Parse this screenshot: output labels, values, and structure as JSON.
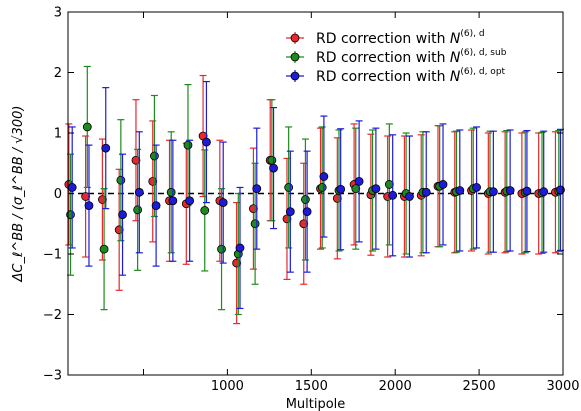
{
  "chart_data": {
    "type": "scatter",
    "title": "",
    "xlabel": "Multipole",
    "ylabel": "ΔC_ℓ^BB / (σ_ℓ^BB / √300)",
    "xlim": [
      50,
      3000
    ],
    "ylim": [
      -3,
      3
    ],
    "x_ticks": [
      1000,
      1500,
      2000,
      2500,
      3000
    ],
    "y_ticks": [
      -3,
      -2,
      -1,
      0,
      1,
      2,
      3
    ],
    "x_tick_labels": [
      "1000",
      "1500",
      "2000",
      "2500",
      "3000"
    ],
    "y_tick_labels": [
      "−3",
      "−2",
      "−1",
      "0",
      "1",
      "2",
      "3"
    ],
    "zero_line": true,
    "grid": false,
    "legend_position": "top-right",
    "series": [
      {
        "name": "RD correction with N^(6), d",
        "legend_main": "RD correction with ",
        "legend_hat": "N",
        "legend_sup": "(6), d",
        "color": "#e8282d",
        "x": [
          55,
          155,
          255,
          355,
          455,
          555,
          655,
          755,
          855,
          955,
          1055,
          1155,
          1255,
          1355,
          1455,
          1555,
          1655,
          1755,
          1855,
          1955,
          2055,
          2155,
          2255,
          2355,
          2455,
          2555,
          2655,
          2755,
          2855,
          2955
        ],
        "y": [
          0.15,
          -0.05,
          -0.1,
          -0.6,
          0.55,
          0.2,
          -0.12,
          -0.17,
          0.95,
          -0.12,
          -1.15,
          -0.25,
          0.55,
          -0.42,
          -0.5,
          0.08,
          -0.08,
          0.15,
          -0.02,
          -0.05,
          -0.05,
          -0.03,
          0.12,
          0.02,
          0.05,
          0.0,
          0.02,
          0.0,
          0.0,
          0.02
        ],
        "err": [
          1.0,
          1.0,
          1.0,
          1.0,
          1.0,
          1.0,
          1.0,
          1.0,
          1.0,
          1.0,
          1.0,
          1.0,
          1.0,
          1.0,
          1.0,
          1.0,
          1.0,
          1.0,
          1.0,
          1.0,
          1.0,
          1.0,
          1.0,
          1.0,
          1.0,
          1.0,
          1.0,
          1.0,
          1.0,
          1.0
        ]
      },
      {
        "name": "RD correction with N^(6), d, sub",
        "legend_main": "RD correction with ",
        "legend_hat": "N",
        "legend_sup": "(6), d, sub",
        "color": "#1c8a1c",
        "x": [
          65,
          165,
          265,
          365,
          465,
          565,
          665,
          765,
          865,
          965,
          1065,
          1165,
          1265,
          1365,
          1465,
          1565,
          1665,
          1765,
          1865,
          1965,
          2065,
          2165,
          2265,
          2365,
          2465,
          2565,
          2665,
          2775,
          2875,
          2975
        ],
        "y": [
          -0.35,
          1.1,
          -0.92,
          0.22,
          -0.27,
          0.62,
          0.02,
          0.8,
          -0.28,
          -0.92,
          -1.0,
          -0.5,
          0.55,
          0.1,
          -0.1,
          0.1,
          0.05,
          0.08,
          0.05,
          0.15,
          0.0,
          0.02,
          0.12,
          0.03,
          0.08,
          0.03,
          0.04,
          0.02,
          0.01,
          0.04
        ],
        "err": [
          1.0,
          1.0,
          1.0,
          1.0,
          1.0,
          1.0,
          1.0,
          1.0,
          1.0,
          1.0,
          1.0,
          1.0,
          1.0,
          1.0,
          1.0,
          1.0,
          1.0,
          1.0,
          1.0,
          1.0,
          1.0,
          1.0,
          1.0,
          1.0,
          1.0,
          1.0,
          1.0,
          1.0,
          1.0,
          1.0
        ]
      },
      {
        "name": "RD correction with N^(6), d, opt",
        "legend_main": "RD correction with ",
        "legend_hat": "N",
        "legend_sup": "(6), d, opt",
        "color": "#1c1cd8",
        "x": [
          75,
          175,
          275,
          375,
          475,
          575,
          675,
          775,
          875,
          975,
          1075,
          1175,
          1275,
          1375,
          1475,
          1575,
          1675,
          1785,
          1885,
          1985,
          2085,
          2185,
          2285,
          2385,
          2485,
          2585,
          2685,
          2785,
          2885,
          2985
        ],
        "y": [
          0.1,
          -0.2,
          0.75,
          -0.35,
          0.02,
          -0.2,
          -0.12,
          -0.12,
          0.85,
          -0.15,
          -0.9,
          0.08,
          0.42,
          -0.3,
          -0.3,
          0.28,
          0.07,
          0.2,
          0.08,
          -0.03,
          -0.05,
          0.02,
          0.15,
          0.05,
          0.1,
          0.03,
          0.05,
          0.04,
          0.03,
          0.06
        ],
        "err": [
          1.0,
          1.0,
          1.0,
          1.0,
          1.0,
          1.0,
          1.0,
          1.0,
          1.0,
          1.0,
          1.0,
          1.0,
          1.0,
          1.0,
          1.0,
          1.0,
          1.0,
          1.0,
          1.0,
          1.0,
          1.0,
          1.0,
          1.0,
          1.0,
          1.0,
          1.0,
          1.0,
          1.0,
          1.0,
          1.0
        ]
      }
    ]
  }
}
